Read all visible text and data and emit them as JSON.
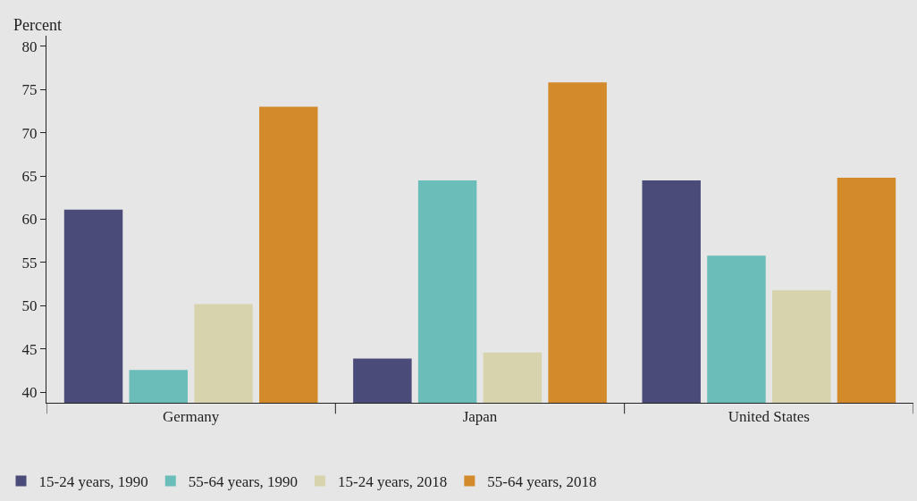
{
  "chart_data": {
    "type": "bar",
    "ylabel": "Percent",
    "categories": [
      "Germany",
      "Japan",
      "United States"
    ],
    "series": [
      {
        "name": "15-24 years, 1990",
        "color": "#4a4b78",
        "values": [
          61.1,
          43.9,
          64.5
        ]
      },
      {
        "name": "55-64 years, 1990",
        "color": "#6bbdb9",
        "values": [
          42.6,
          64.5,
          55.8
        ]
      },
      {
        "name": "15-24 years, 2018",
        "color": "#d6d3ad",
        "values": [
          50.2,
          44.6,
          51.8
        ]
      },
      {
        "name": "55-64 years, 2018",
        "color": "#d38a2b",
        "values": [
          73.0,
          75.8,
          64.8
        ]
      }
    ],
    "ylim": [
      38.8,
      81.2
    ],
    "yticks": [
      40,
      45,
      50,
      55,
      60,
      65,
      70,
      75,
      80
    ],
    "grid": false,
    "legend": "bottom"
  }
}
